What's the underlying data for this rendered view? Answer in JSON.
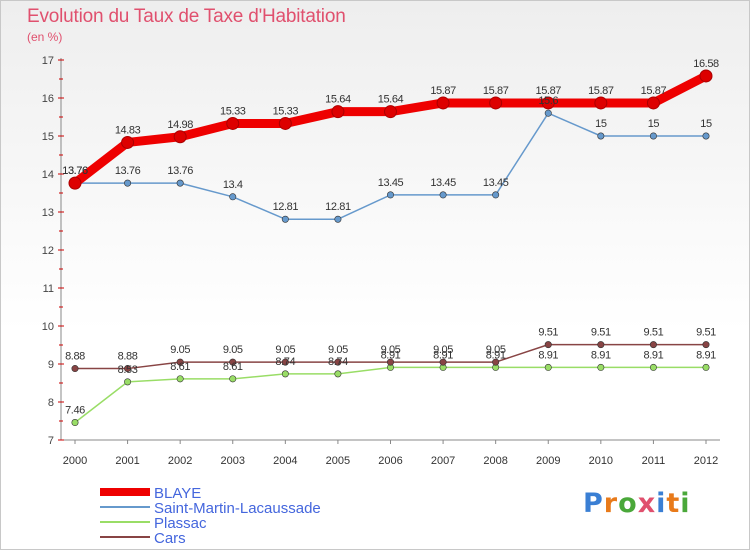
{
  "title": "Evolution du Taux de Taxe d'Habitation",
  "unit_label": "(en %)",
  "logo_text": "Proxiti",
  "chart_data": {
    "type": "line",
    "title": "Evolution du Taux de Taxe d'Habitation",
    "ylabel": "(en %)",
    "xlabel": "",
    "x": [
      "2000",
      "2001",
      "2002",
      "2003",
      "2004",
      "2005",
      "2006",
      "2007",
      "2008",
      "2009",
      "2010",
      "2011",
      "2012"
    ],
    "ylim": [
      7,
      17
    ],
    "yticks": [
      7,
      8,
      9,
      10,
      11,
      12,
      13,
      14,
      15,
      16,
      17
    ],
    "grid": false,
    "legend_position": "bottom-left",
    "series": [
      {
        "name": "BLAYE",
        "color": "#ee0000",
        "labels": [
          "13.76",
          "14.83",
          "14.98",
          "15.33",
          "15.33",
          "15.64",
          "15.64",
          "15.87",
          "15.87",
          "15.87",
          "15.87",
          "15.87",
          "16.58"
        ],
        "values": [
          13.76,
          14.83,
          14.98,
          15.33,
          15.33,
          15.64,
          15.64,
          15.87,
          15.87,
          15.87,
          15.87,
          15.87,
          16.58
        ]
      },
      {
        "name": "Saint-Martin-Lacaussade",
        "color": "#6699cc",
        "labels": [
          "13.76",
          "13.76",
          "13.76",
          "13.4",
          "12.81",
          "12.81",
          "13.45",
          "13.45",
          "13.45",
          "15.6",
          "15",
          "15",
          "15"
        ],
        "values": [
          13.76,
          13.76,
          13.76,
          13.4,
          12.81,
          12.81,
          13.45,
          13.45,
          13.45,
          15.6,
          15,
          15,
          15
        ]
      },
      {
        "name": "Plassac",
        "color": "#99dd66",
        "labels": [
          "7.46",
          "8.53",
          "8.61",
          "8.61",
          "8.74",
          "8.74",
          "8.91",
          "8.91",
          "8.91",
          "8.91",
          "8.91",
          "8.91",
          "8.91"
        ],
        "values": [
          7.46,
          8.53,
          8.61,
          8.61,
          8.74,
          8.74,
          8.91,
          8.91,
          8.91,
          8.91,
          8.91,
          8.91,
          8.91
        ]
      },
      {
        "name": "Cars",
        "color": "#884444",
        "labels": [
          "8.88",
          "8.88",
          "9.05",
          "9.05",
          "9.05",
          "9.05",
          "9.05",
          "9.05",
          "9.05",
          "9.51",
          "9.51",
          "9.51",
          "9.51"
        ],
        "values": [
          8.88,
          8.88,
          9.05,
          9.05,
          9.05,
          9.05,
          9.05,
          9.05,
          9.05,
          9.51,
          9.51,
          9.51,
          9.51
        ]
      }
    ]
  }
}
